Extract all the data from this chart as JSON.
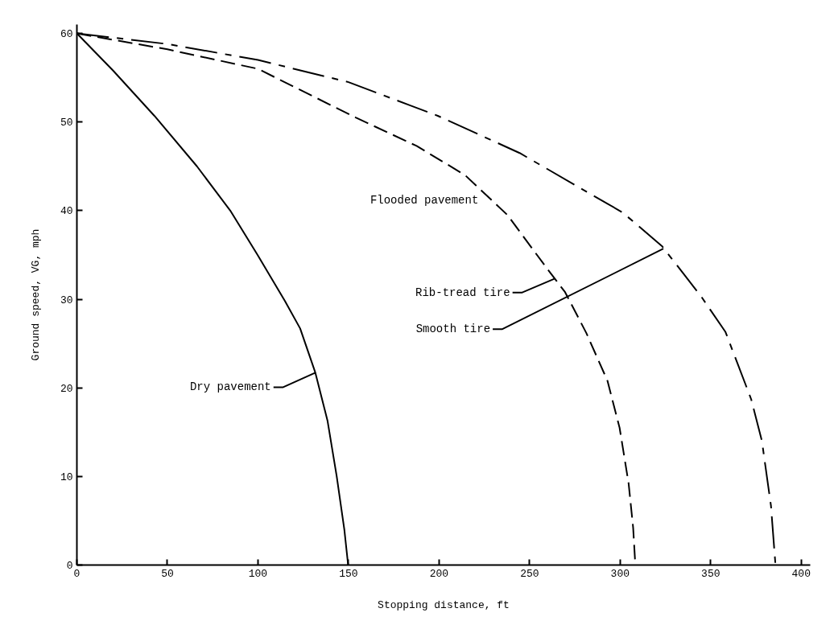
{
  "chart_data": {
    "type": "line",
    "xlabel": "Stopping distance, ft",
    "ylabel": "Ground speed, VG, mph",
    "xlim": [
      0,
      405
    ],
    "ylim": [
      0,
      61
    ],
    "xticks": [
      0,
      50,
      100,
      150,
      200,
      250,
      300,
      350,
      400
    ],
    "yticks": [
      0,
      10,
      20,
      30,
      40,
      50,
      60
    ],
    "grid": false,
    "marker": "none",
    "series": [
      {
        "color": "#000000",
        "line_style": "solid",
        "x": [
          0,
          20,
          42.8,
          66.3,
          84.7,
          99.8,
          114.9,
          123.3,
          131.7,
          138.4,
          143.5,
          147.7,
          149.8
        ],
        "values": [
          60,
          55.8,
          50.7,
          45,
          40,
          35,
          29.8,
          26.7,
          21.7,
          16.3,
          10,
          4,
          0
        ]
      },
      {
        "color": "#000000",
        "line_style": "dashed",
        "x": [
          0,
          50,
          100,
          154,
          187.6,
          214.4,
          237.8,
          259.5,
          269.6,
          281.3,
          293,
          299.7,
          304.7,
          307.2,
          308.4
        ],
        "values": [
          60,
          58.2,
          56,
          50.5,
          47.3,
          44,
          39.5,
          33.5,
          30.8,
          26.2,
          20.8,
          15.5,
          9.2,
          4.2,
          0
        ]
      },
      {
        "color": "#000000",
        "line_style": "dashdot",
        "x": [
          0,
          50,
          100,
          150,
          199.3,
          244.5,
          301.3,
          323.1,
          344.8,
          358.2,
          372.4,
          378.3,
          383.3,
          385.8
        ],
        "values": [
          60,
          58.8,
          57,
          54.5,
          50.7,
          46.5,
          39.8,
          36,
          30.3,
          26.3,
          18.7,
          14,
          6.7,
          0
        ]
      }
    ],
    "annotations": [
      {
        "text": "Dry pavement",
        "x": 131.7,
        "y": 21.7
      },
      "Flooded pavement",
      {
        "text": "Rib-tread tire",
        "x": 263.7,
        "y": 32.3
      },
      {
        "text": "Smooth tire",
        "x": 323.9,
        "y": 35.7
      }
    ]
  }
}
